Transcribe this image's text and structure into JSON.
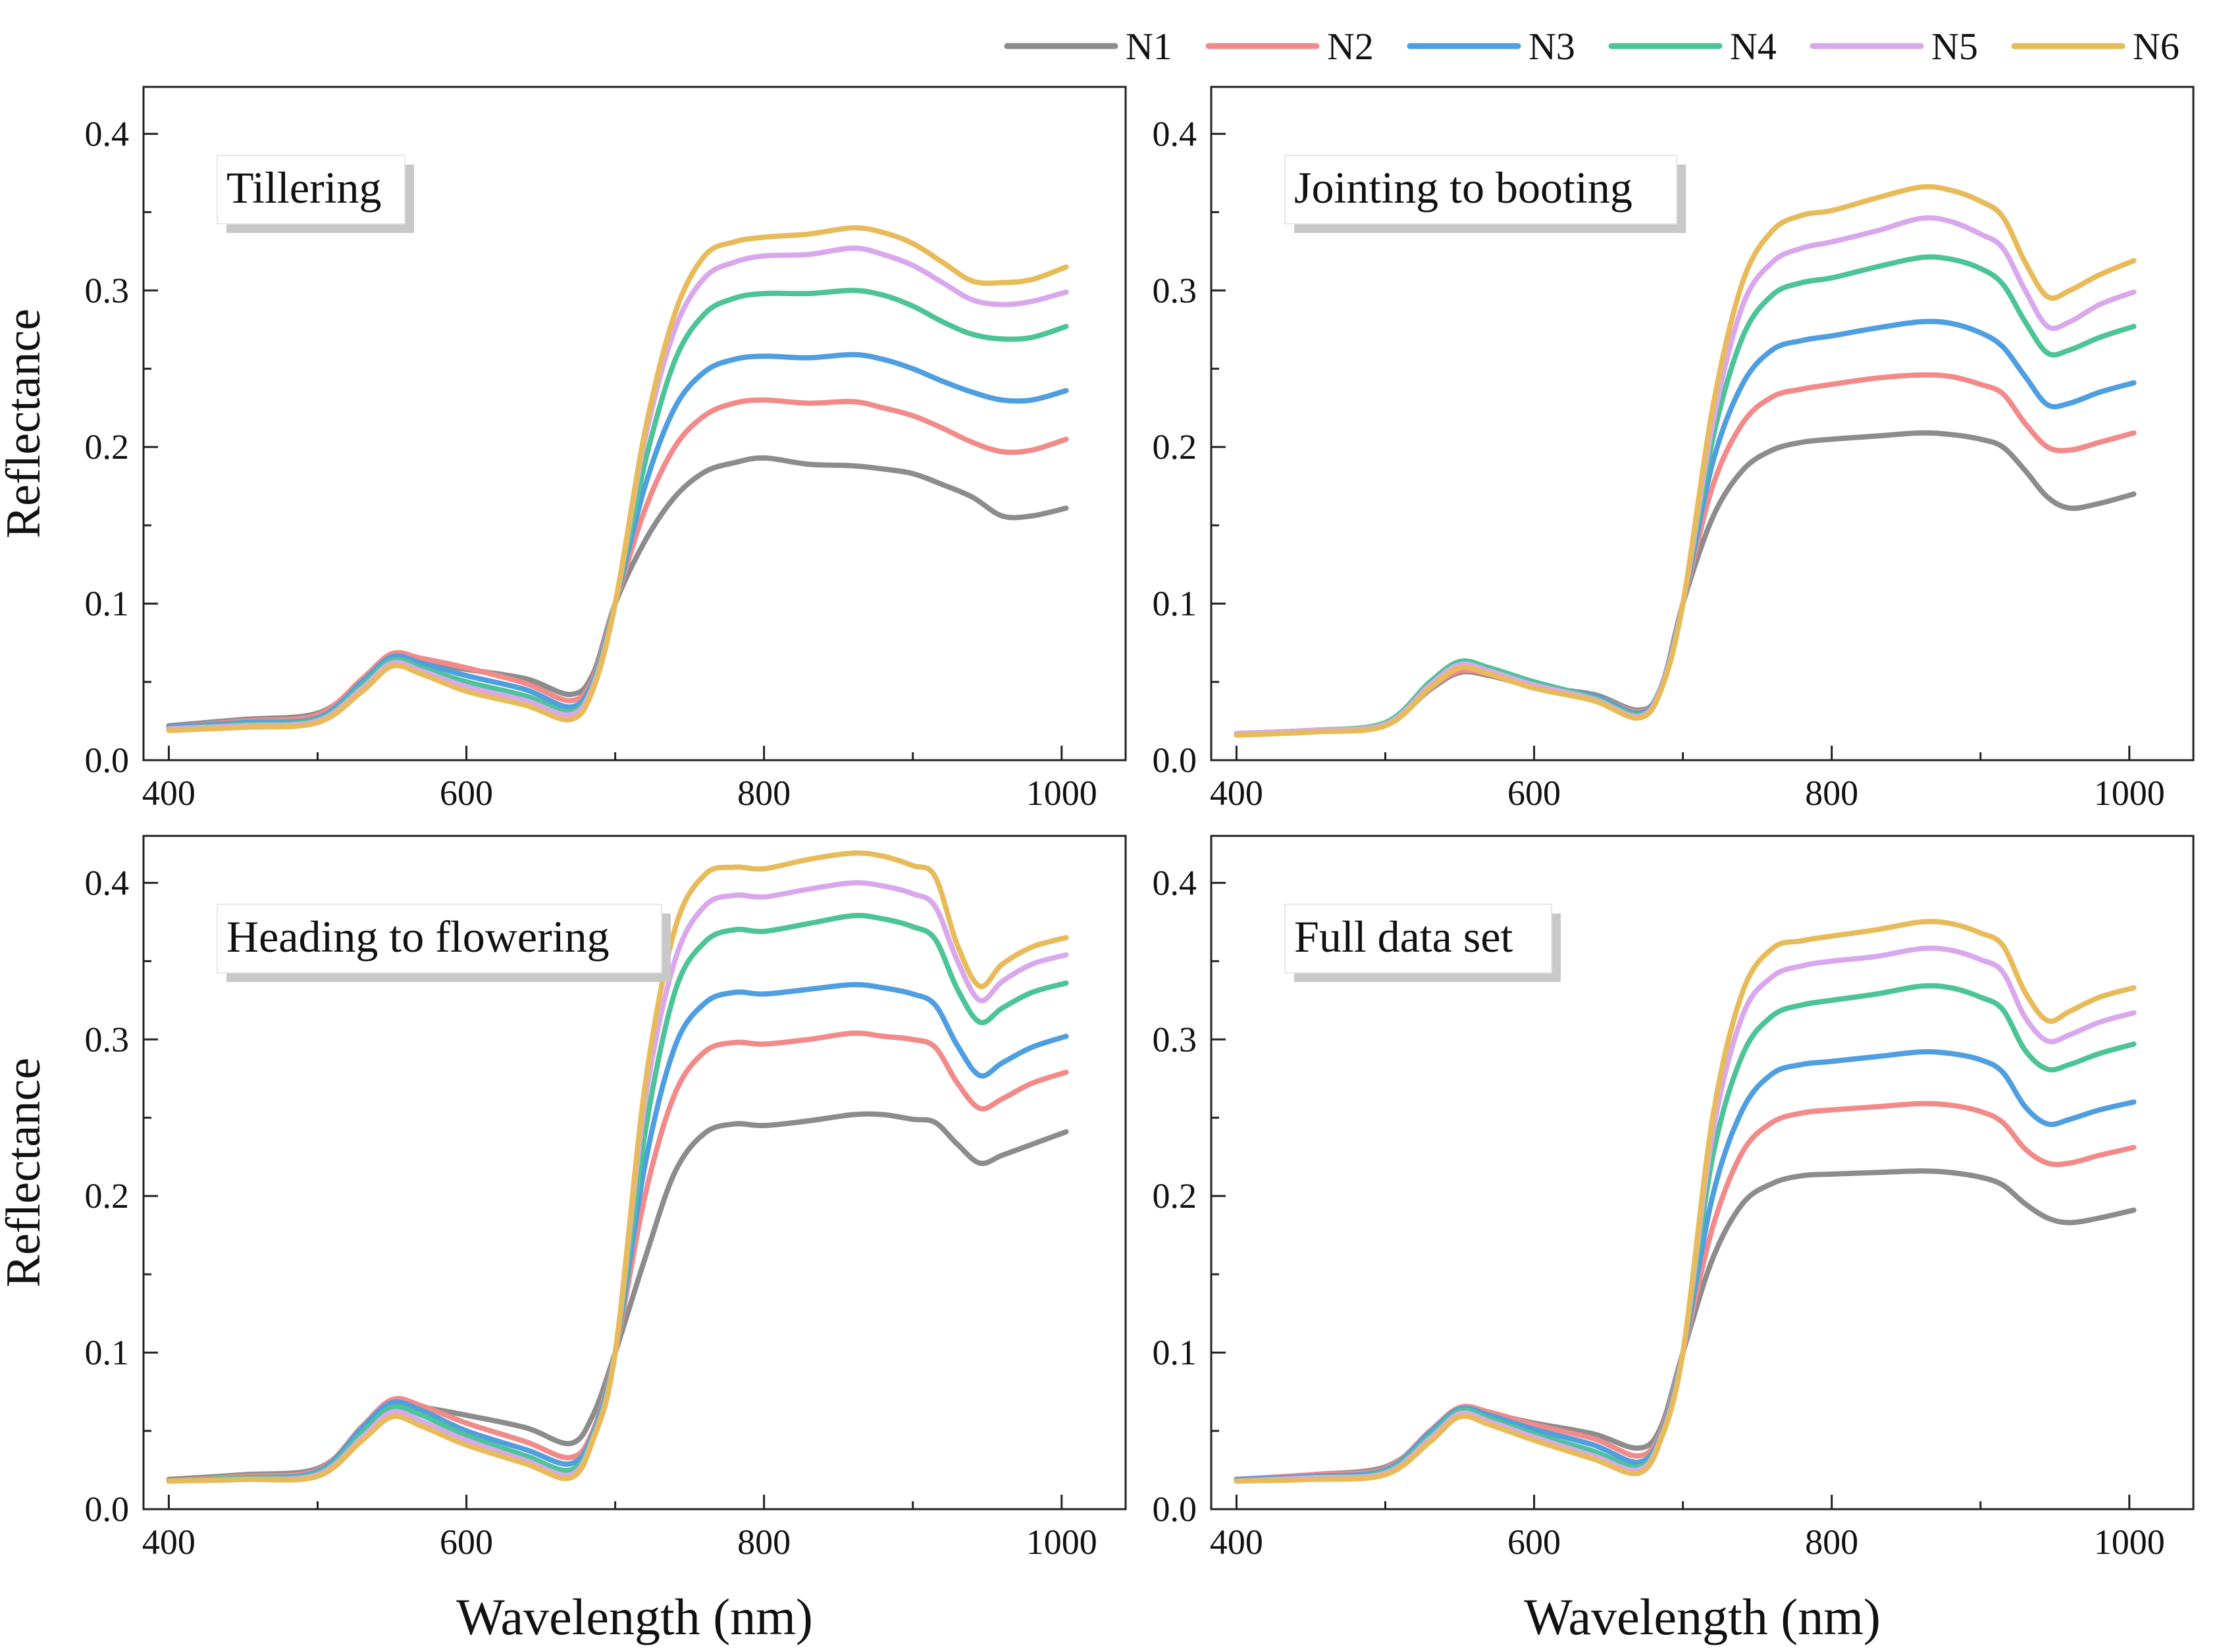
{
  "legend": {
    "entries": [
      {
        "name": "N1",
        "color": "#8c8c8c"
      },
      {
        "name": "N2",
        "color": "#f28a8a"
      },
      {
        "name": "N3",
        "color": "#4f9ee0"
      },
      {
        "name": "N4",
        "color": "#4cc497"
      },
      {
        "name": "N5",
        "color": "#d9a8ec"
      },
      {
        "name": "N6",
        "color": "#e8bb5a"
      }
    ]
  },
  "chart_data": [
    {
      "type": "line",
      "title": "Tillering",
      "xlabel": "",
      "ylabel": "Reflectance",
      "xlim": [
        383,
        1043
      ],
      "ylim": [
        0,
        0.43
      ],
      "xticks": [
        400,
        600,
        800,
        1000
      ],
      "yticks": [
        0.0,
        0.1,
        0.2,
        0.3,
        0.4
      ],
      "x": [
        400,
        450,
        500,
        530,
        550,
        570,
        600,
        640,
        670,
        685,
        700,
        720,
        740,
        760,
        780,
        800,
        830,
        860,
        880,
        900,
        920,
        940,
        960,
        980,
        1003
      ],
      "series": [
        {
          "name": "N1",
          "values": [
            0.022,
            0.026,
            0.03,
            0.05,
            0.065,
            0.063,
            0.058,
            0.052,
            0.042,
            0.055,
            0.1,
            0.14,
            0.168,
            0.184,
            0.19,
            0.193,
            0.189,
            0.188,
            0.186,
            0.183,
            0.176,
            0.168,
            0.156,
            0.156,
            0.161
          ]
        },
        {
          "name": "N2",
          "values": [
            0.021,
            0.025,
            0.029,
            0.052,
            0.068,
            0.065,
            0.059,
            0.049,
            0.038,
            0.052,
            0.1,
            0.16,
            0.2,
            0.22,
            0.228,
            0.23,
            0.228,
            0.229,
            0.225,
            0.22,
            0.212,
            0.203,
            0.197,
            0.198,
            0.205
          ]
        },
        {
          "name": "N3",
          "values": [
            0.021,
            0.024,
            0.027,
            0.05,
            0.066,
            0.062,
            0.054,
            0.045,
            0.034,
            0.05,
            0.1,
            0.175,
            0.225,
            0.248,
            0.256,
            0.258,
            0.257,
            0.259,
            0.256,
            0.25,
            0.242,
            0.235,
            0.23,
            0.23,
            0.236
          ]
        },
        {
          "name": "N4",
          "values": [
            0.02,
            0.023,
            0.026,
            0.048,
            0.064,
            0.059,
            0.05,
            0.041,
            0.031,
            0.048,
            0.1,
            0.19,
            0.255,
            0.285,
            0.295,
            0.298,
            0.298,
            0.3,
            0.297,
            0.29,
            0.28,
            0.272,
            0.269,
            0.27,
            0.277
          ]
        },
        {
          "name": "N5",
          "values": [
            0.02,
            0.022,
            0.025,
            0.046,
            0.062,
            0.057,
            0.047,
            0.038,
            0.029,
            0.047,
            0.1,
            0.205,
            0.275,
            0.308,
            0.318,
            0.322,
            0.323,
            0.327,
            0.323,
            0.316,
            0.305,
            0.294,
            0.291,
            0.293,
            0.299
          ]
        },
        {
          "name": "N6",
          "values": [
            0.019,
            0.021,
            0.024,
            0.044,
            0.06,
            0.055,
            0.044,
            0.035,
            0.026,
            0.045,
            0.1,
            0.21,
            0.285,
            0.322,
            0.331,
            0.334,
            0.336,
            0.34,
            0.337,
            0.33,
            0.318,
            0.306,
            0.305,
            0.307,
            0.315
          ]
        }
      ]
    },
    {
      "type": "line",
      "title": "Jointing to booting",
      "xlabel": "",
      "ylabel": "",
      "xlim": [
        383,
        1043
      ],
      "ylim": [
        0,
        0.43
      ],
      "xticks": [
        400,
        600,
        800,
        1000
      ],
      "yticks": [
        0.0,
        0.1,
        0.2,
        0.3,
        0.4
      ],
      "x": [
        400,
        450,
        500,
        530,
        550,
        570,
        600,
        640,
        670,
        685,
        700,
        720,
        740,
        760,
        780,
        800,
        830,
        860,
        880,
        900,
        915,
        930,
        945,
        960,
        980,
        1003
      ],
      "series": [
        {
          "name": "N1",
          "values": [
            0.017,
            0.019,
            0.023,
            0.045,
            0.056,
            0.054,
            0.047,
            0.042,
            0.032,
            0.045,
            0.1,
            0.155,
            0.185,
            0.198,
            0.203,
            0.205,
            0.207,
            0.209,
            0.208,
            0.205,
            0.2,
            0.185,
            0.168,
            0.161,
            0.164,
            0.17
          ]
        },
        {
          "name": "N2",
          "values": [
            0.017,
            0.019,
            0.023,
            0.046,
            0.057,
            0.055,
            0.048,
            0.041,
            0.031,
            0.046,
            0.1,
            0.175,
            0.215,
            0.232,
            0.237,
            0.24,
            0.244,
            0.246,
            0.245,
            0.24,
            0.234,
            0.215,
            0.2,
            0.198,
            0.203,
            0.209
          ]
        },
        {
          "name": "N3",
          "values": [
            0.017,
            0.019,
            0.023,
            0.048,
            0.059,
            0.056,
            0.048,
            0.041,
            0.03,
            0.046,
            0.1,
            0.19,
            0.24,
            0.262,
            0.268,
            0.271,
            0.276,
            0.28,
            0.279,
            0.273,
            0.264,
            0.245,
            0.227,
            0.228,
            0.235,
            0.241
          ]
        },
        {
          "name": "N4",
          "values": [
            0.017,
            0.019,
            0.024,
            0.05,
            0.063,
            0.059,
            0.05,
            0.04,
            0.029,
            0.045,
            0.1,
            0.205,
            0.27,
            0.297,
            0.305,
            0.308,
            0.315,
            0.321,
            0.32,
            0.314,
            0.304,
            0.28,
            0.26,
            0.262,
            0.27,
            0.277
          ]
        },
        {
          "name": "N5",
          "values": [
            0.017,
            0.019,
            0.023,
            0.048,
            0.061,
            0.057,
            0.048,
            0.039,
            0.028,
            0.045,
            0.1,
            0.215,
            0.29,
            0.318,
            0.327,
            0.331,
            0.338,
            0.346,
            0.344,
            0.336,
            0.327,
            0.3,
            0.277,
            0.28,
            0.291,
            0.299
          ]
        },
        {
          "name": "N6",
          "values": [
            0.016,
            0.018,
            0.022,
            0.046,
            0.059,
            0.055,
            0.046,
            0.038,
            0.027,
            0.044,
            0.1,
            0.225,
            0.305,
            0.338,
            0.348,
            0.351,
            0.359,
            0.366,
            0.364,
            0.357,
            0.347,
            0.318,
            0.296,
            0.3,
            0.31,
            0.319
          ]
        }
      ]
    },
    {
      "type": "line",
      "title": "Heading to flowering",
      "xlabel": "Wavelength (nm)",
      "ylabel": "Reflectance",
      "xlim": [
        383,
        1043
      ],
      "ylim": [
        0,
        0.43
      ],
      "xticks": [
        400,
        600,
        800,
        1000
      ],
      "yticks": [
        0.0,
        0.1,
        0.2,
        0.3,
        0.4
      ],
      "x": [
        400,
        450,
        500,
        530,
        550,
        570,
        600,
        640,
        670,
        685,
        700,
        720,
        740,
        760,
        780,
        800,
        830,
        860,
        880,
        900,
        915,
        930,
        945,
        960,
        980,
        1003
      ],
      "series": [
        {
          "name": "N1",
          "values": [
            0.019,
            0.022,
            0.026,
            0.05,
            0.066,
            0.065,
            0.06,
            0.052,
            0.042,
            0.06,
            0.1,
            0.16,
            0.215,
            0.24,
            0.246,
            0.245,
            0.248,
            0.252,
            0.252,
            0.249,
            0.247,
            0.233,
            0.221,
            0.226,
            0.233,
            0.241
          ]
        },
        {
          "name": "N2",
          "values": [
            0.018,
            0.021,
            0.025,
            0.053,
            0.07,
            0.066,
            0.055,
            0.043,
            0.033,
            0.05,
            0.1,
            0.2,
            0.265,
            0.292,
            0.298,
            0.297,
            0.3,
            0.304,
            0.302,
            0.3,
            0.295,
            0.272,
            0.256,
            0.262,
            0.272,
            0.279
          ]
        },
        {
          "name": "N3",
          "values": [
            0.018,
            0.02,
            0.024,
            0.052,
            0.068,
            0.063,
            0.05,
            0.038,
            0.029,
            0.048,
            0.1,
            0.22,
            0.295,
            0.323,
            0.33,
            0.329,
            0.332,
            0.335,
            0.333,
            0.329,
            0.322,
            0.296,
            0.277,
            0.285,
            0.295,
            0.302
          ]
        },
        {
          "name": "N4",
          "values": [
            0.018,
            0.02,
            0.023,
            0.049,
            0.065,
            0.06,
            0.047,
            0.034,
            0.025,
            0.046,
            0.1,
            0.24,
            0.33,
            0.362,
            0.37,
            0.369,
            0.374,
            0.379,
            0.377,
            0.372,
            0.364,
            0.332,
            0.311,
            0.32,
            0.33,
            0.336
          ]
        },
        {
          "name": "N5",
          "values": [
            0.018,
            0.019,
            0.022,
            0.046,
            0.062,
            0.056,
            0.044,
            0.031,
            0.022,
            0.045,
            0.1,
            0.26,
            0.35,
            0.385,
            0.392,
            0.391,
            0.396,
            0.4,
            0.398,
            0.393,
            0.385,
            0.35,
            0.325,
            0.337,
            0.348,
            0.354
          ]
        },
        {
          "name": "N6",
          "values": [
            0.018,
            0.019,
            0.021,
            0.044,
            0.059,
            0.053,
            0.041,
            0.029,
            0.02,
            0.044,
            0.1,
            0.27,
            0.37,
            0.405,
            0.41,
            0.409,
            0.415,
            0.419,
            0.417,
            0.411,
            0.404,
            0.36,
            0.334,
            0.348,
            0.359,
            0.365
          ]
        }
      ]
    },
    {
      "type": "line",
      "title": "Full data set",
      "xlabel": "Wavelength (nm)",
      "ylabel": "",
      "xlim": [
        383,
        1043
      ],
      "ylim": [
        0,
        0.43
      ],
      "xticks": [
        400,
        600,
        800,
        1000
      ],
      "yticks": [
        0.0,
        0.1,
        0.2,
        0.3,
        0.4
      ],
      "x": [
        400,
        450,
        500,
        530,
        550,
        570,
        600,
        640,
        670,
        685,
        700,
        720,
        740,
        760,
        780,
        800,
        830,
        860,
        880,
        900,
        915,
        930,
        945,
        960,
        980,
        1003
      ],
      "series": [
        {
          "name": "N1",
          "values": [
            0.019,
            0.022,
            0.027,
            0.048,
            0.063,
            0.061,
            0.055,
            0.048,
            0.039,
            0.052,
            0.1,
            0.16,
            0.195,
            0.208,
            0.213,
            0.214,
            0.215,
            0.216,
            0.215,
            0.212,
            0.207,
            0.195,
            0.186,
            0.183,
            0.186,
            0.191
          ]
        },
        {
          "name": "N2",
          "values": [
            0.019,
            0.022,
            0.026,
            0.05,
            0.065,
            0.062,
            0.054,
            0.045,
            0.034,
            0.049,
            0.1,
            0.18,
            0.228,
            0.247,
            0.253,
            0.255,
            0.257,
            0.259,
            0.258,
            0.254,
            0.247,
            0.23,
            0.221,
            0.221,
            0.226,
            0.231
          ]
        },
        {
          "name": "N3",
          "values": [
            0.019,
            0.021,
            0.025,
            0.049,
            0.064,
            0.06,
            0.051,
            0.041,
            0.03,
            0.047,
            0.1,
            0.2,
            0.255,
            0.278,
            0.284,
            0.286,
            0.289,
            0.292,
            0.291,
            0.287,
            0.279,
            0.257,
            0.246,
            0.249,
            0.255,
            0.26
          ]
        },
        {
          "name": "N4",
          "values": [
            0.018,
            0.02,
            0.024,
            0.047,
            0.063,
            0.058,
            0.048,
            0.037,
            0.027,
            0.046,
            0.1,
            0.225,
            0.29,
            0.315,
            0.322,
            0.325,
            0.329,
            0.334,
            0.333,
            0.327,
            0.319,
            0.293,
            0.281,
            0.284,
            0.291,
            0.297
          ]
        },
        {
          "name": "N5",
          "values": [
            0.018,
            0.02,
            0.023,
            0.045,
            0.061,
            0.056,
            0.046,
            0.034,
            0.025,
            0.045,
            0.1,
            0.24,
            0.315,
            0.34,
            0.347,
            0.35,
            0.353,
            0.358,
            0.357,
            0.351,
            0.343,
            0.314,
            0.299,
            0.303,
            0.311,
            0.317
          ]
        },
        {
          "name": "N6",
          "values": [
            0.018,
            0.019,
            0.022,
            0.043,
            0.059,
            0.054,
            0.044,
            0.032,
            0.023,
            0.044,
            0.1,
            0.25,
            0.33,
            0.358,
            0.363,
            0.366,
            0.37,
            0.375,
            0.374,
            0.368,
            0.36,
            0.33,
            0.312,
            0.318,
            0.327,
            0.333
          ]
        }
      ]
    }
  ]
}
